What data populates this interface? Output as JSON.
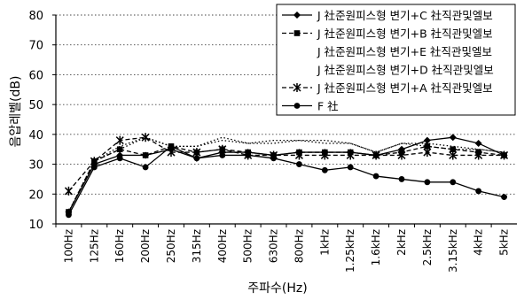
{
  "chart_data": {
    "type": "line",
    "xlabel": "주파수(Hz)",
    "ylabel": "음압레벨(dB)",
    "ylim": [
      10,
      80
    ],
    "yticks": [
      10,
      20,
      30,
      40,
      50,
      60,
      70,
      80
    ],
    "grid": "horizontal-dotted",
    "legend_position": "top-right",
    "categories": [
      "100Hz",
      "125Hz",
      "160Hz",
      "200Hz",
      "250Hz",
      "315Hz",
      "400Hz",
      "500Hz",
      "630Hz",
      "800Hz",
      "1kHz",
      "1.25kHz",
      "1.6kHz",
      "2kHz",
      "2.5kHz",
      "3.15kHz",
      "4kHz",
      "5kHz"
    ],
    "series": [
      {
        "name": "J 社준원피스형 변기+C 社직관및엘보",
        "marker": "diamond",
        "dash": "solid",
        "values": [
          14,
          30,
          33,
          33,
          35,
          32,
          34,
          34,
          33,
          34,
          34,
          34,
          33,
          35,
          38,
          39,
          37,
          33
        ]
      },
      {
        "name": "J 社준원피스형 변기+B 社직관및엘보",
        "marker": "square",
        "dash": "dashed",
        "values": [
          14,
          31,
          35,
          33,
          36,
          34,
          35,
          34,
          33,
          34,
          34,
          34,
          33,
          34,
          36,
          35,
          34,
          33
        ]
      },
      {
        "name": "J 社준원피스형 변기+E 社직관및엘보",
        "marker": "none",
        "dash": "dotted",
        "values": [
          14,
          31,
          36,
          39,
          36,
          36,
          39,
          37,
          38,
          38,
          37,
          37,
          34,
          37,
          37,
          36,
          35,
          34
        ]
      },
      {
        "name": "J 社준원피스형 변기+D 社직관및엘보",
        "marker": "none",
        "dash": "dotted",
        "values": [
          14,
          31,
          35,
          39,
          36,
          36,
          38,
          37,
          37,
          38,
          38,
          37,
          34,
          37,
          36,
          35,
          35,
          34
        ]
      },
      {
        "name": "J 社준원피스형 변기+A 社직관및엘보",
        "marker": "star",
        "dash": "dashed",
        "values": [
          21,
          31,
          38,
          39,
          34,
          34,
          35,
          33,
          33,
          33,
          33,
          33,
          33,
          33,
          34,
          33,
          33,
          33
        ]
      },
      {
        "name": "F 社",
        "marker": "circle",
        "dash": "solid",
        "values": [
          13,
          29,
          32,
          29,
          36,
          32,
          33,
          33,
          32,
          30,
          28,
          29,
          26,
          25,
          24,
          24,
          21,
          19
        ]
      }
    ]
  }
}
